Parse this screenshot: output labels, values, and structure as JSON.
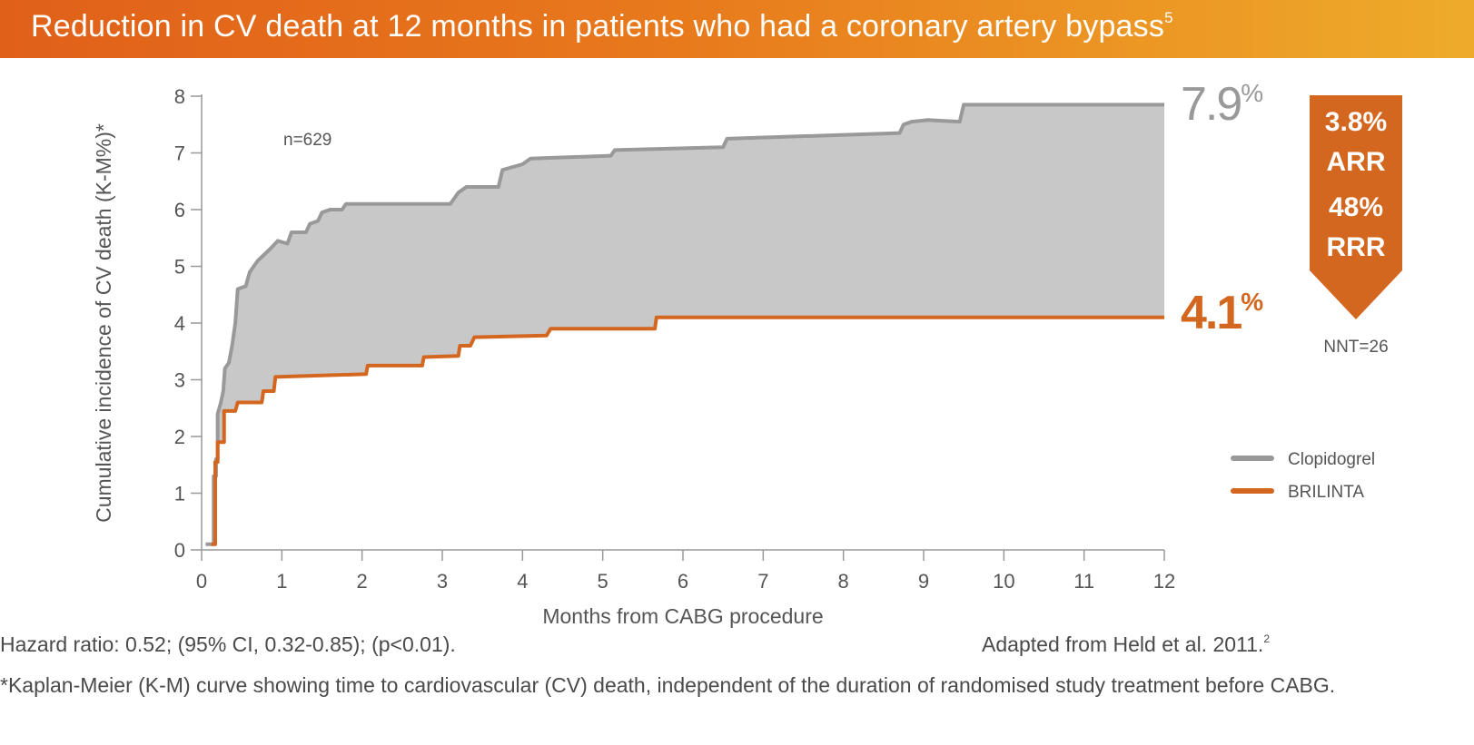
{
  "banner": {
    "title": "Reduction in CV death at 12 months in patients who had a coronary artery bypass",
    "title_sup": "5",
    "colors": [
      "#e0601a",
      "#eeab2a"
    ]
  },
  "chart_data": {
    "type": "line",
    "title": "Reduction in CV death at 12 months in patients who had a coronary artery bypass",
    "xlabel": "Months from CABG procedure",
    "ylabel": "Cumulative incidence of CV death (K-M%)*",
    "xlim": [
      0,
      12
    ],
    "ylim": [
      0,
      8
    ],
    "xticks": [
      "0",
      "1",
      "2",
      "3",
      "4",
      "5",
      "6",
      "7",
      "8",
      "9",
      "10",
      "11",
      "12"
    ],
    "yticks": [
      "0",
      "1",
      "2",
      "3",
      "4",
      "5",
      "6",
      "7",
      "8"
    ],
    "shaded_between_series": true,
    "annotation": "n=629",
    "series": [
      {
        "name": "Clopidogrel",
        "color": "#999999",
        "end_label": "7.9",
        "end_unit": "%",
        "points": [
          [
            0.05,
            0.1
          ],
          [
            0.15,
            0.1
          ],
          [
            0.15,
            1.3
          ],
          [
            0.18,
            1.3
          ],
          [
            0.18,
            1.6
          ],
          [
            0.2,
            1.6
          ],
          [
            0.2,
            2.4
          ],
          [
            0.24,
            2.6
          ],
          [
            0.27,
            2.8
          ],
          [
            0.29,
            3.2
          ],
          [
            0.34,
            3.3
          ],
          [
            0.38,
            3.6
          ],
          [
            0.42,
            4.0
          ],
          [
            0.44,
            4.4
          ],
          [
            0.45,
            4.6
          ],
          [
            0.55,
            4.65
          ],
          [
            0.6,
            4.9
          ],
          [
            0.7,
            5.1
          ],
          [
            0.85,
            5.3
          ],
          [
            0.95,
            5.45
          ],
          [
            1.07,
            5.4
          ],
          [
            1.12,
            5.6
          ],
          [
            1.3,
            5.6
          ],
          [
            1.35,
            5.75
          ],
          [
            1.45,
            5.8
          ],
          [
            1.5,
            5.95
          ],
          [
            1.6,
            6.0
          ],
          [
            1.75,
            6.0
          ],
          [
            1.8,
            6.1
          ],
          [
            3.1,
            6.1
          ],
          [
            3.2,
            6.3
          ],
          [
            3.3,
            6.4
          ],
          [
            3.7,
            6.4
          ],
          [
            3.75,
            6.7
          ],
          [
            4.0,
            6.8
          ],
          [
            4.1,
            6.9
          ],
          [
            5.1,
            6.95
          ],
          [
            5.15,
            7.05
          ],
          [
            6.5,
            7.1
          ],
          [
            6.55,
            7.25
          ],
          [
            8.7,
            7.35
          ],
          [
            8.75,
            7.5
          ],
          [
            8.85,
            7.55
          ],
          [
            9.05,
            7.58
          ],
          [
            9.45,
            7.55
          ],
          [
            9.5,
            7.85
          ],
          [
            12.0,
            7.85
          ]
        ]
      },
      {
        "name": "BRILINTA",
        "color": "#d4671f",
        "end_label": "4.1",
        "end_unit": "%",
        "points": [
          [
            0.12,
            0.1
          ],
          [
            0.17,
            0.1
          ],
          [
            0.17,
            1.55
          ],
          [
            0.2,
            1.55
          ],
          [
            0.2,
            1.9
          ],
          [
            0.28,
            1.9
          ],
          [
            0.28,
            2.45
          ],
          [
            0.42,
            2.45
          ],
          [
            0.45,
            2.6
          ],
          [
            0.75,
            2.6
          ],
          [
            0.77,
            2.8
          ],
          [
            0.9,
            2.8
          ],
          [
            0.92,
            3.05
          ],
          [
            2.05,
            3.1
          ],
          [
            2.07,
            3.25
          ],
          [
            2.75,
            3.25
          ],
          [
            2.77,
            3.4
          ],
          [
            3.2,
            3.42
          ],
          [
            3.22,
            3.6
          ],
          [
            3.35,
            3.6
          ],
          [
            3.4,
            3.75
          ],
          [
            4.3,
            3.78
          ],
          [
            4.35,
            3.9
          ],
          [
            5.65,
            3.9
          ],
          [
            5.67,
            4.1
          ],
          [
            12.0,
            4.1
          ]
        ]
      }
    ],
    "legend": {
      "position": "right",
      "entries": [
        "Clopidogrel",
        "BRILINTA"
      ]
    }
  },
  "callout": {
    "arr_value": "3.8%",
    "arr_label": "ARR",
    "rrr_value": "48%",
    "rrr_label": "RRR",
    "nnt": "NNT=26",
    "color": "#d4671f"
  },
  "footer": {
    "hazard_ratio": "Hazard ratio: 0.52; (95% CI, 0.32-0.85); (p<0.01).",
    "source": "Adapted from Held et al. 2011.",
    "source_sup": "2",
    "note": "*Kaplan-Meier (K-M) curve showing time to cardiovascular (CV) death, independent of the duration of randomised study treatment before CABG."
  }
}
